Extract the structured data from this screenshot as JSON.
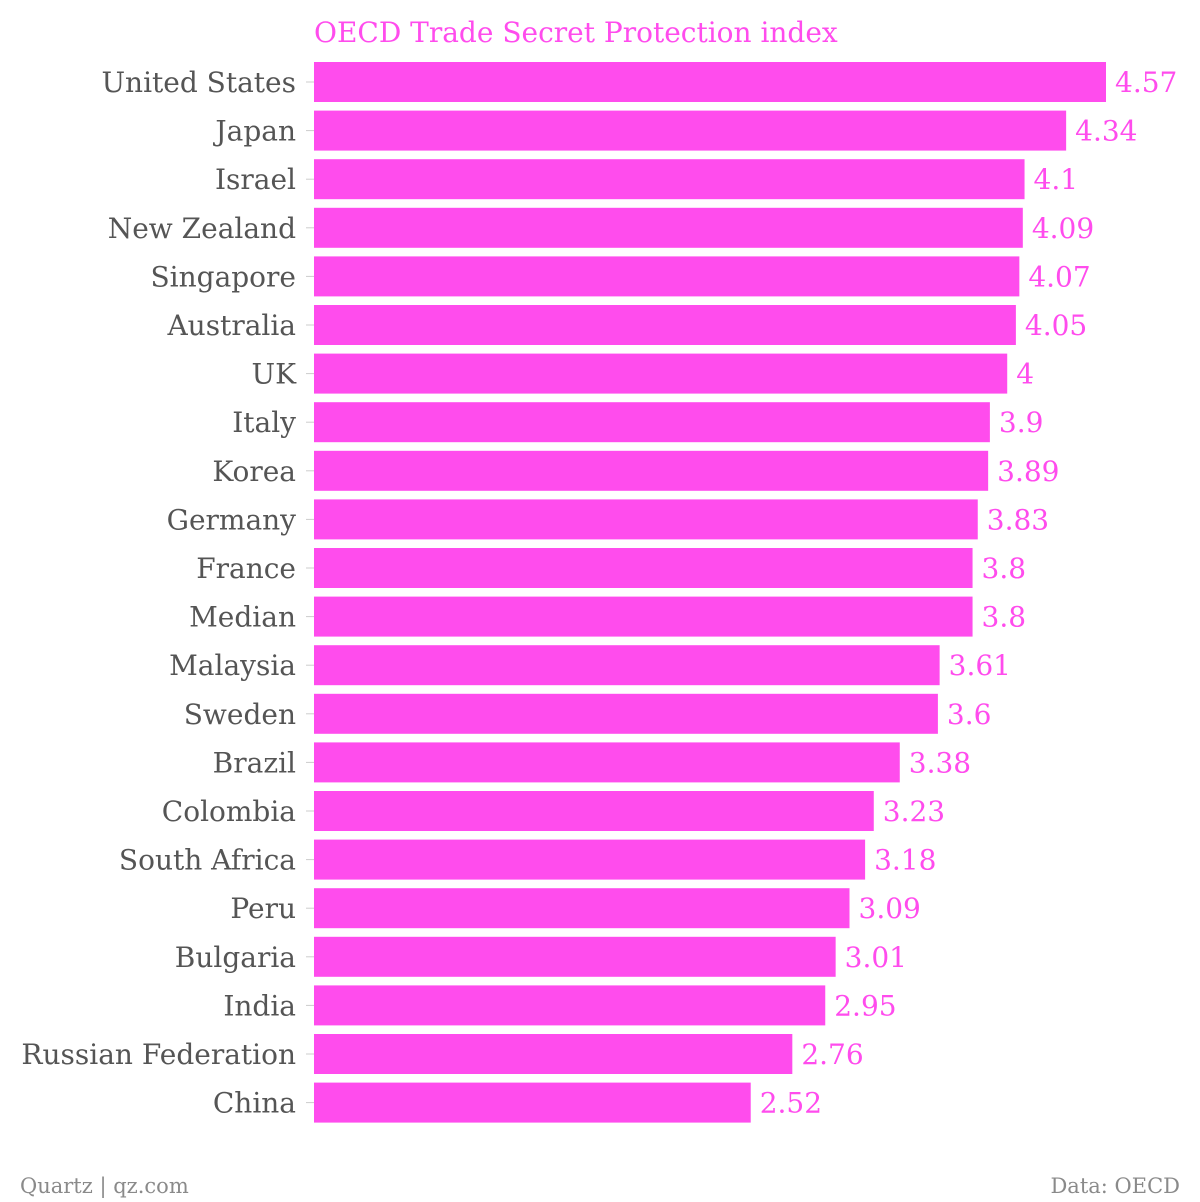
{
  "chart_data": {
    "type": "bar",
    "orientation": "horizontal",
    "title": "OECD Trade Secret Protection index",
    "categories": [
      "United States",
      "Japan",
      "Israel",
      "New Zealand",
      "Singapore",
      "Australia",
      "UK",
      "Italy",
      "Korea",
      "Germany",
      "France",
      "Median",
      "Malaysia",
      "Sweden",
      "Brazil",
      "Colombia",
      "South Africa",
      "Peru",
      "Bulgaria",
      "India",
      "Russian Federation",
      "China"
    ],
    "values": [
      4.57,
      4.34,
      4.1,
      4.09,
      4.07,
      4.05,
      4,
      3.9,
      3.89,
      3.83,
      3.8,
      3.8,
      3.61,
      3.6,
      3.38,
      3.23,
      3.18,
      3.09,
      3.01,
      2.95,
      2.76,
      2.52
    ],
    "value_labels": [
      "4.57",
      "4.34",
      "4.1",
      "4.09",
      "4.07",
      "4.05",
      "4",
      "3.9",
      "3.89",
      "3.83",
      "3.8",
      "3.8",
      "3.61",
      "3.6",
      "3.38",
      "3.23",
      "3.18",
      "3.09",
      "3.01",
      "2.95",
      "2.76",
      "2.52"
    ],
    "xlim": [
      0,
      4.57
    ],
    "xlabel": "",
    "ylabel": "",
    "grid": false,
    "legend": "none",
    "colors": {
      "bar": "#ff4ced",
      "title": "#ff4ced",
      "value_label": "#ff4ced",
      "category_label": "#555555",
      "footer": "#8a8a8a",
      "tick": "#cccccc"
    }
  },
  "footer": {
    "source_left": "Quartz | qz.com",
    "source_right": "Data: OECD"
  }
}
